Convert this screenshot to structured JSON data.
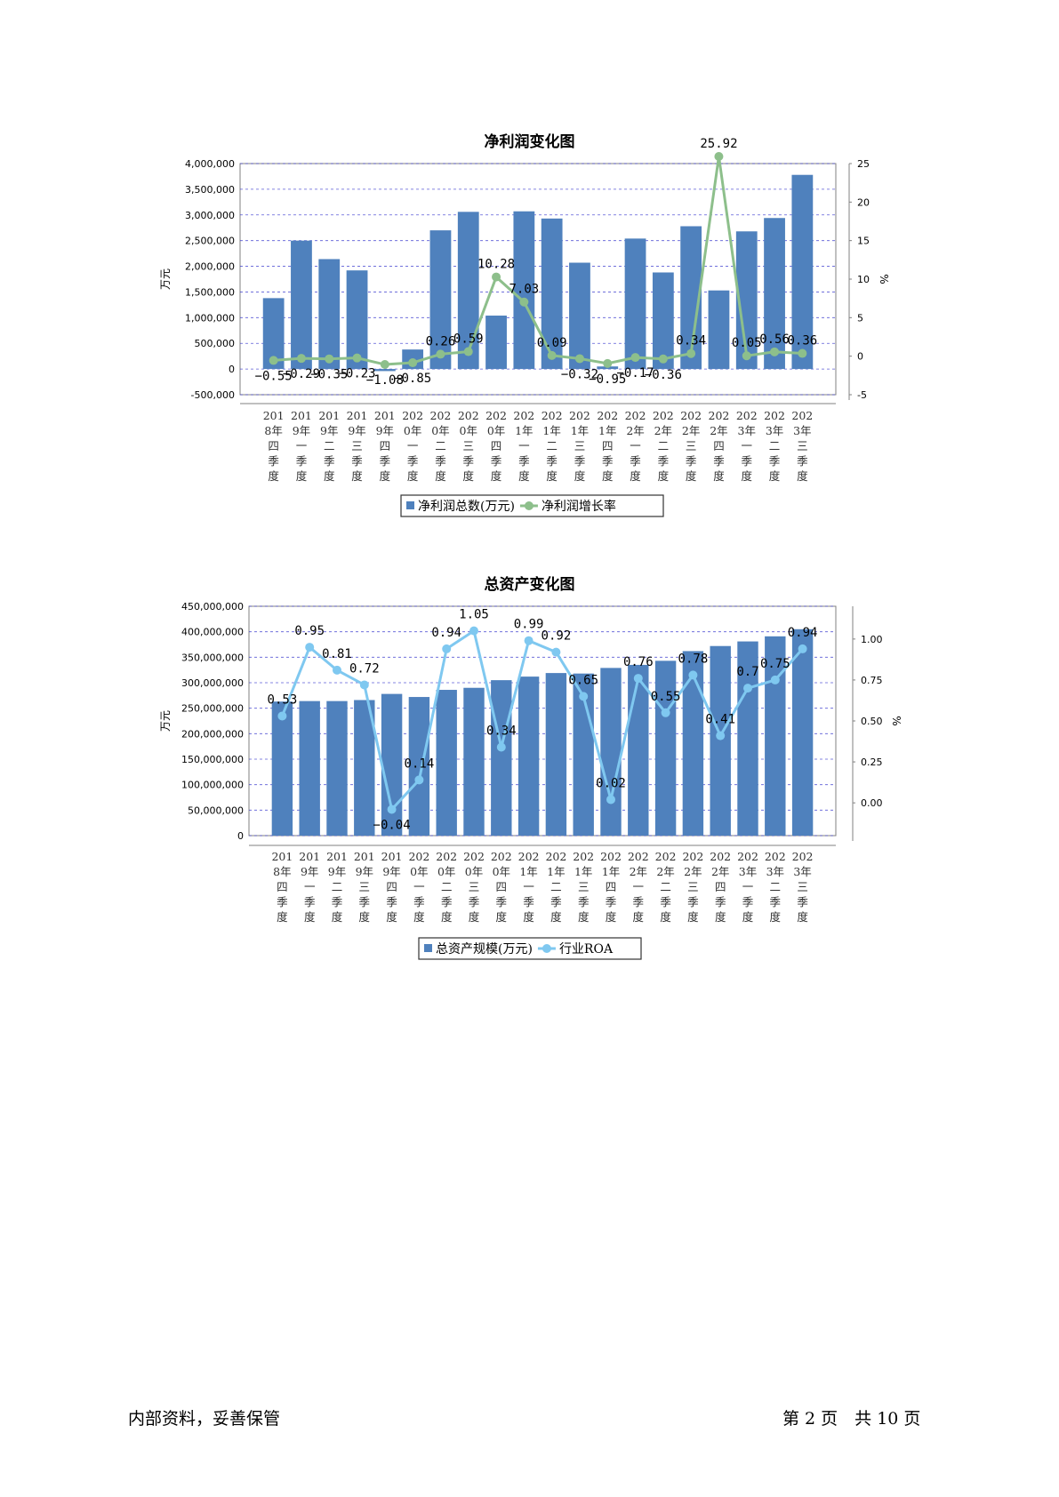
{
  "footer": {
    "left_text": "内部资料，妥善保管",
    "page_label": "第 2 页　共 10 页"
  },
  "chart_data": [
    {
      "type": "bar",
      "title": "净利润变化图",
      "ylabel": "万元",
      "ylabel_right": "%",
      "ylim": [
        -500000,
        4000000
      ],
      "yticks": [
        "-500,000",
        "0",
        "500,000",
        "1,000,000",
        "1,500,000",
        "2,000,000",
        "2,500,000",
        "3,000,000",
        "3,500,000",
        "4,000,000"
      ],
      "ylim_right": [
        -5,
        25
      ],
      "yticks_right": [
        "-5",
        "0",
        "5",
        "10",
        "15",
        "20",
        "25"
      ],
      "grid": true,
      "legend_position": "bottom",
      "categories": [
        [
          "201",
          "8年",
          "四",
          "季",
          "度"
        ],
        [
          "201",
          "9年",
          "一",
          "季",
          "度"
        ],
        [
          "201",
          "9年",
          "二",
          "季",
          "度"
        ],
        [
          "201",
          "9年",
          "三",
          "季",
          "度"
        ],
        [
          "201",
          "9年",
          "四",
          "季",
          "度"
        ],
        [
          "202",
          "0年",
          "一",
          "季",
          "度"
        ],
        [
          "202",
          "0年",
          "二",
          "季",
          "度"
        ],
        [
          "202",
          "0年",
          "三",
          "季",
          "度"
        ],
        [
          "202",
          "0年",
          "四",
          "季",
          "度"
        ],
        [
          "202",
          "1年",
          "一",
          "季",
          "度"
        ],
        [
          "202",
          "1年",
          "二",
          "季",
          "度"
        ],
        [
          "202",
          "1年",
          "三",
          "季",
          "度"
        ],
        [
          "202",
          "1年",
          "四",
          "季",
          "度"
        ],
        [
          "202",
          "2年",
          "一",
          "季",
          "度"
        ],
        [
          "202",
          "2年",
          "二",
          "季",
          "度"
        ],
        [
          "202",
          "2年",
          "三",
          "季",
          "度"
        ],
        [
          "202",
          "2年",
          "四",
          "季",
          "度"
        ],
        [
          "202",
          "3年",
          "一",
          "季",
          "度"
        ],
        [
          "202",
          "3年",
          "二",
          "季",
          "度"
        ],
        [
          "202",
          "3年",
          "三",
          "季",
          "度"
        ]
      ],
      "series": [
        {
          "name": "净利润总数(万元)",
          "kind": "bar",
          "axis": "left",
          "color": "#4F81BD",
          "values": [
            1380000,
            2500000,
            2140000,
            1920000,
            -40000,
            380000,
            2700000,
            3060000,
            1040000,
            3070000,
            2930000,
            2070000,
            50000,
            2540000,
            1880000,
            2780000,
            1530000,
            2680000,
            2940000,
            3780000
          ]
        },
        {
          "name": "净利润增长率",
          "kind": "line",
          "axis": "right",
          "color": "#8DBF8B",
          "values": [
            -0.55,
            -0.29,
            -0.35,
            -0.23,
            -1.08,
            -0.85,
            0.26,
            0.59,
            10.28,
            7.03,
            0.09,
            -0.32,
            -0.95,
            -0.17,
            -0.36,
            0.34,
            25.92,
            0.05,
            0.56,
            0.36
          ],
          "labels": [
            "−0.55",
            "−0.29",
            "−0.35",
            "−0.23",
            "−1.08",
            "−0.85",
            "0.26",
            "0.59",
            "10.28",
            "7.03",
            "0.09",
            "−0.32",
            "−0.95",
            "−0.17",
            "−0.36",
            "0.34",
            "25.92",
            "0.05",
            "0.56",
            "0.36"
          ]
        }
      ]
    },
    {
      "type": "bar",
      "title": "总资产变化图",
      "ylabel": "万元",
      "ylabel_right": "%",
      "ylim": [
        0,
        450000000
      ],
      "yticks": [
        "0",
        "50,000,000",
        "100,000,000",
        "150,000,000",
        "200,000,000",
        "250,000,000",
        "300,000,000",
        "350,000,000",
        "400,000,000",
        "450,000,000"
      ],
      "ylim_right": [
        -0.2,
        1.2
      ],
      "yticks_right": [
        "0.00",
        "0.25",
        "0.50",
        "0.75",
        "1.00"
      ],
      "grid": true,
      "legend_position": "bottom",
      "categories": [
        [
          "201",
          "8年",
          "四",
          "季",
          "度"
        ],
        [
          "201",
          "9年",
          "一",
          "季",
          "度"
        ],
        [
          "201",
          "9年",
          "二",
          "季",
          "度"
        ],
        [
          "201",
          "9年",
          "三",
          "季",
          "度"
        ],
        [
          "201",
          "9年",
          "四",
          "季",
          "度"
        ],
        [
          "202",
          "0年",
          "一",
          "季",
          "度"
        ],
        [
          "202",
          "0年",
          "二",
          "季",
          "度"
        ],
        [
          "202",
          "0年",
          "三",
          "季",
          "度"
        ],
        [
          "202",
          "0年",
          "四",
          "季",
          "度"
        ],
        [
          "202",
          "1年",
          "一",
          "季",
          "度"
        ],
        [
          "202",
          "1年",
          "二",
          "季",
          "度"
        ],
        [
          "202",
          "1年",
          "三",
          "季",
          "度"
        ],
        [
          "202",
          "1年",
          "四",
          "季",
          "度"
        ],
        [
          "202",
          "2年",
          "一",
          "季",
          "度"
        ],
        [
          "202",
          "2年",
          "二",
          "季",
          "度"
        ],
        [
          "202",
          "2年",
          "三",
          "季",
          "度"
        ],
        [
          "202",
          "2年",
          "四",
          "季",
          "度"
        ],
        [
          "202",
          "3年",
          "一",
          "季",
          "度"
        ],
        [
          "202",
          "3年",
          "二",
          "季",
          "度"
        ],
        [
          "202",
          "3年",
          "三",
          "季",
          "度"
        ]
      ],
      "series": [
        {
          "name": "总资产规模(万元)",
          "kind": "bar",
          "axis": "left",
          "color": "#4F81BD",
          "values": [
            263000000,
            264000000,
            264000000,
            266000000,
            278000000,
            272000000,
            286000000,
            290000000,
            305000000,
            312000000,
            319000000,
            318000000,
            329000000,
            335000000,
            343000000,
            362000000,
            372000000,
            381000000,
            391000000,
            405000000
          ]
        },
        {
          "name": "行业ROA",
          "kind": "line",
          "axis": "right",
          "color": "#7FC8F0",
          "values": [
            0.53,
            0.95,
            0.81,
            0.72,
            -0.04,
            0.14,
            0.94,
            1.05,
            0.34,
            0.99,
            0.92,
            0.65,
            0.02,
            0.76,
            0.55,
            0.78,
            0.41,
            0.7,
            0.75,
            0.94
          ],
          "labels": [
            "0.53",
            "0.95",
            "0.81",
            "0.72",
            "−0.04",
            "0.14",
            "0.94",
            "1.05",
            "0.34",
            "0.99",
            "0.92",
            "0.65",
            "0.02",
            "0.76",
            "0.55",
            "0.78",
            "0.41",
            "0.7",
            "0.75",
            "0.94"
          ]
        }
      ]
    }
  ]
}
